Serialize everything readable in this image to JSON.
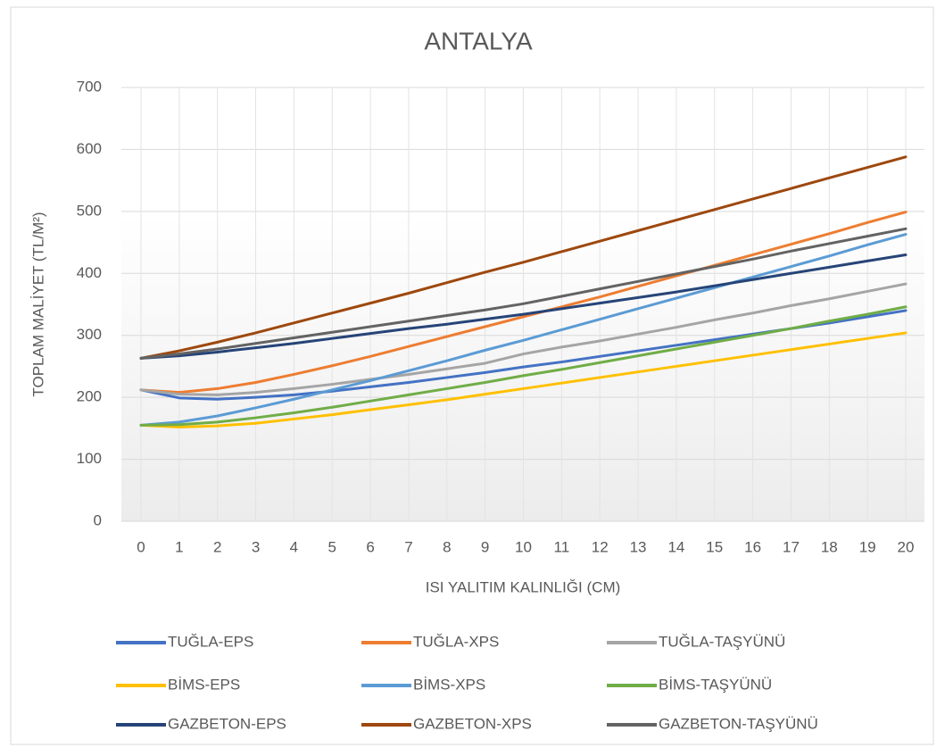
{
  "chart_data": {
    "type": "line",
    "title": "ANTALYA",
    "x_label": "ISI YALITIM KALINLIĞI (CM)",
    "y_label": "TOPLAM MALİYET (TL/M²)",
    "x": [
      0,
      1,
      2,
      3,
      4,
      5,
      6,
      7,
      8,
      9,
      10,
      11,
      12,
      13,
      14,
      15,
      16,
      17,
      18,
      19,
      20
    ],
    "xlim": [
      0,
      20
    ],
    "xticks": [
      0,
      1,
      2,
      3,
      4,
      5,
      6,
      7,
      8,
      9,
      10,
      11,
      12,
      13,
      14,
      15,
      16,
      17,
      18,
      19,
      20
    ],
    "ylim": [
      0,
      700
    ],
    "yticks": [
      0,
      100,
      200,
      300,
      400,
      500,
      600,
      700
    ],
    "grid": true,
    "legend": "bottom",
    "series": [
      {
        "name": "TUĞLA-EPS",
        "color": "#4472c4",
        "values": [
          212,
          199,
          197,
          200,
          204,
          210,
          217,
          224,
          232,
          240,
          249,
          257,
          266,
          275,
          284,
          293,
          302,
          311,
          320,
          330,
          340
        ]
      },
      {
        "name": "TUĞLA-XPS",
        "color": "#ed7d31",
        "values": [
          212,
          208,
          214,
          224,
          237,
          251,
          266,
          282,
          298,
          314,
          330,
          346,
          362,
          379,
          396,
          413,
          430,
          447,
          464,
          482,
          499
        ]
      },
      {
        "name": "TUĞLA-TAŞYÜNÜ",
        "color": "#a5a5a5",
        "values": [
          212,
          205,
          204,
          208,
          214,
          221,
          229,
          237,
          246,
          255,
          270,
          281,
          291,
          302,
          313,
          325,
          336,
          348,
          359,
          371,
          383
        ]
      },
      {
        "name": "BİMS-EPS",
        "color": "#ffc000",
        "values": [
          155,
          152,
          154,
          158,
          165,
          172,
          180,
          188,
          196,
          205,
          214,
          223,
          232,
          241,
          250,
          259,
          268,
          277,
          286,
          295,
          304
        ]
      },
      {
        "name": "BİMS-XPS",
        "color": "#5b9bd5",
        "values": [
          155,
          160,
          170,
          183,
          197,
          212,
          227,
          243,
          259,
          276,
          292,
          309,
          326,
          343,
          360,
          377,
          394,
          411,
          428,
          446,
          463
        ]
      },
      {
        "name": "BİMS-TAŞYÜNÜ",
        "color": "#70ad47",
        "values": [
          155,
          156,
          160,
          167,
          175,
          184,
          194,
          204,
          214,
          224,
          235,
          245,
          256,
          267,
          278,
          289,
          300,
          311,
          323,
          334,
          346
        ]
      },
      {
        "name": "GAZBETON-EPS",
        "color": "#264478",
        "values": [
          263,
          267,
          273,
          280,
          287,
          295,
          303,
          311,
          318,
          326,
          334,
          343,
          352,
          361,
          370,
          380,
          390,
          400,
          410,
          420,
          430
        ]
      },
      {
        "name": "GAZBETON-XPS",
        "color": "#9e480e",
        "values": [
          263,
          275,
          289,
          304,
          320,
          336,
          352,
          368,
          385,
          402,
          418,
          435,
          452,
          469,
          486,
          503,
          520,
          537,
          554,
          571,
          588
        ]
      },
      {
        "name": "GAZBETON-TAŞYÜNÜ",
        "color": "#636363",
        "values": [
          263,
          270,
          278,
          287,
          296,
          305,
          314,
          323,
          332,
          341,
          351,
          363,
          375,
          387,
          399,
          411,
          423,
          436,
          448,
          460,
          472
        ]
      }
    ]
  }
}
